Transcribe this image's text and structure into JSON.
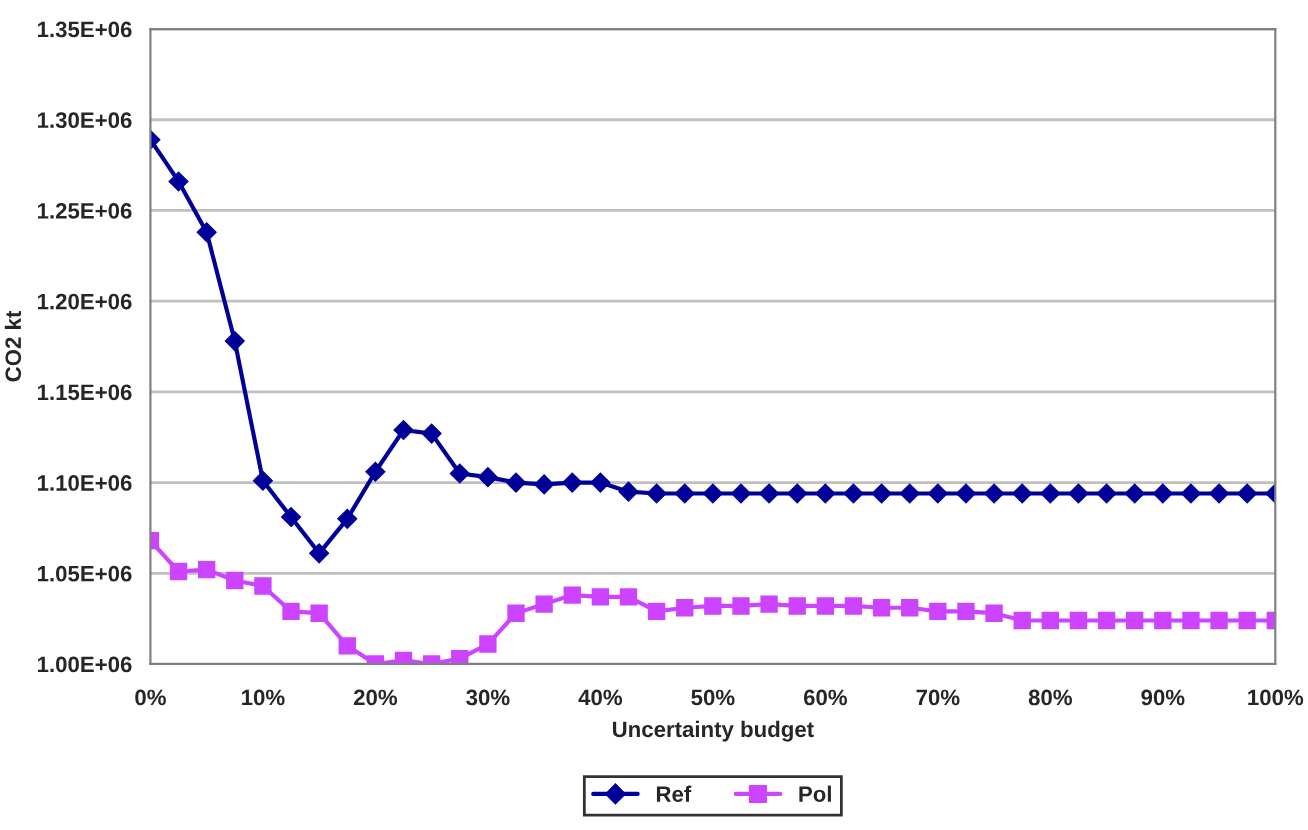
{
  "chart_data": {
    "type": "line",
    "xlabel": "Uncertainty budget",
    "ylabel": "CO2 kt",
    "x": [
      0,
      2.5,
      5,
      7.5,
      10,
      12.5,
      15,
      17.5,
      20,
      22.5,
      25,
      27.5,
      30,
      32.5,
      35,
      37.5,
      40,
      42.5,
      45,
      47.5,
      50,
      52.5,
      55,
      57.5,
      60,
      62.5,
      65,
      67.5,
      70,
      72.5,
      75,
      77.5,
      80,
      82.5,
      85,
      87.5,
      90,
      92.5,
      95,
      97.5,
      100
    ],
    "series": [
      {
        "name": "Ref",
        "color": "#000099",
        "marker": "diamond",
        "values": [
          1289000,
          1266000,
          1238000,
          1178000,
          1101000,
          1081000,
          1061000,
          1080000,
          1106000,
          1129000,
          1127000,
          1105000,
          1103000,
          1100000,
          1099000,
          1100000,
          1100000,
          1095000,
          1094000,
          1094000,
          1094000,
          1094000,
          1094000,
          1094000,
          1094000,
          1094000,
          1094000,
          1094000,
          1094000,
          1094000,
          1094000,
          1094000,
          1094000,
          1094000,
          1094000,
          1094000,
          1094000,
          1094000,
          1094000,
          1094000,
          1094000
        ]
      },
      {
        "name": "Pol",
        "color": "#cc44ff",
        "marker": "square",
        "values": [
          1068000,
          1051000,
          1052000,
          1046000,
          1043000,
          1029000,
          1028000,
          1010000,
          1000000,
          1002000,
          1000000,
          1003000,
          1011000,
          1028000,
          1033000,
          1038000,
          1037000,
          1037000,
          1029000,
          1031000,
          1032000,
          1032000,
          1033000,
          1032000,
          1032000,
          1032000,
          1031000,
          1031000,
          1029000,
          1029000,
          1028000,
          1024000,
          1024000,
          1024000,
          1024000,
          1024000,
          1024000,
          1024000,
          1024000,
          1024000,
          1024000
        ]
      }
    ],
    "xlim": [
      0,
      100
    ],
    "xticks": [
      {
        "value": 0,
        "label": "0%"
      },
      {
        "value": 10,
        "label": "10%"
      },
      {
        "value": 20,
        "label": "20%"
      },
      {
        "value": 30,
        "label": "30%"
      },
      {
        "value": 40,
        "label": "40%"
      },
      {
        "value": 50,
        "label": "50%"
      },
      {
        "value": 60,
        "label": "60%"
      },
      {
        "value": 70,
        "label": "70%"
      },
      {
        "value": 80,
        "label": "80%"
      },
      {
        "value": 90,
        "label": "90%"
      },
      {
        "value": 100,
        "label": "100%"
      }
    ],
    "ylim": [
      1000000,
      1350000
    ],
    "yticks": [
      {
        "value": 1000000,
        "label": "1.00E+06"
      },
      {
        "value": 1050000,
        "label": "1.05E+06"
      },
      {
        "value": 1100000,
        "label": "1.10E+06"
      },
      {
        "value": 1150000,
        "label": "1.15E+06"
      },
      {
        "value": 1200000,
        "label": "1.20E+06"
      },
      {
        "value": 1250000,
        "label": "1.25E+06"
      },
      {
        "value": 1300000,
        "label": "1.30E+06"
      },
      {
        "value": 1350000,
        "label": "1.35E+06"
      }
    ],
    "grid": "y",
    "legend": "bottom",
    "line_style": "solid"
  }
}
